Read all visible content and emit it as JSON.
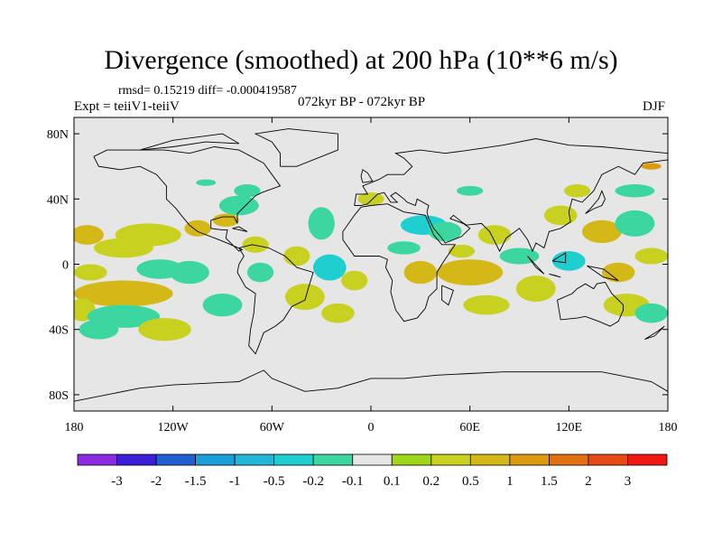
{
  "title": "Divergence (smoothed) at 200 hPa (10**6 m/s)",
  "stats": "rmsd= 0.15219 diff= -0.000419587",
  "period": "072kyr BP - 072kyr BP",
  "expt": "Expt = teiiV1-teiiV",
  "season": "DJF",
  "map": {
    "projection": "cylindrical-equidistant",
    "lon_range": [
      -180,
      180
    ],
    "lat_range": [
      -90,
      90
    ],
    "background_color": "#e6e6e6",
    "x_ticks": [
      {
        "value": -180,
        "label": "180"
      },
      {
        "value": -120,
        "label": "120W"
      },
      {
        "value": -60,
        "label": "60W"
      },
      {
        "value": 0,
        "label": "0"
      },
      {
        "value": 60,
        "label": "60E"
      },
      {
        "value": 120,
        "label": "120E"
      },
      {
        "value": 180,
        "label": "180"
      }
    ],
    "y_ticks": [
      {
        "value": 80,
        "label": "80N"
      },
      {
        "value": 40,
        "label": "40N"
      },
      {
        "value": 0,
        "label": "0"
      },
      {
        "value": -40,
        "label": "40S"
      },
      {
        "value": -80,
        "label": "80S"
      }
    ]
  },
  "colorbar": {
    "colors": [
      "#8a2be2",
      "#3a1fd6",
      "#1f5fd1",
      "#1c9ed8",
      "#22b7d6",
      "#1fcfd0",
      "#3cd6a0",
      "#e6e6e6",
      "#a0d61a",
      "#c8d020",
      "#d4b818",
      "#dc9a10",
      "#e07010",
      "#e64a14",
      "#f01810"
    ],
    "labels": [
      "-3",
      "-2",
      "-1.5",
      "-1",
      "-0.5",
      "-0.2",
      "-0.1",
      "0.1",
      "0.2",
      "0.5",
      "1",
      "1.5",
      "2",
      "3"
    ]
  },
  "anomalies": [
    {
      "lon": -172,
      "lat": 18,
      "rx": 10,
      "ry": 6,
      "v": 0.5
    },
    {
      "lon": -150,
      "lat": 10,
      "rx": 18,
      "ry": 6,
      "v": 0.2
    },
    {
      "lon": -135,
      "lat": 18,
      "rx": 20,
      "ry": 7,
      "v": 0.2
    },
    {
      "lon": -105,
      "lat": 22,
      "rx": 8,
      "ry": 5,
      "v": 0.5
    },
    {
      "lon": -170,
      "lat": -5,
      "rx": 10,
      "ry": 5,
      "v": 0.2
    },
    {
      "lon": -128,
      "lat": -3,
      "rx": 14,
      "ry": 6,
      "v": -0.2
    },
    {
      "lon": -110,
      "lat": -5,
      "rx": 12,
      "ry": 7,
      "v": -0.2
    },
    {
      "lon": -150,
      "lat": -18,
      "rx": 30,
      "ry": 8,
      "v": 0.5
    },
    {
      "lon": -175,
      "lat": -28,
      "rx": 8,
      "ry": 7,
      "v": 0.2
    },
    {
      "lon": -150,
      "lat": -32,
      "rx": 22,
      "ry": 7,
      "v": -0.2
    },
    {
      "lon": -90,
      "lat": -25,
      "rx": 12,
      "ry": 7,
      "v": -0.2
    },
    {
      "lon": -125,
      "lat": -40,
      "rx": 16,
      "ry": 7,
      "v": 0.2
    },
    {
      "lon": -165,
      "lat": -40,
      "rx": 12,
      "ry": 6,
      "v": -0.2
    },
    {
      "lon": -80,
      "lat": 36,
      "rx": 12,
      "ry": 6,
      "v": -0.2
    },
    {
      "lon": -88,
      "lat": 27,
      "rx": 8,
      "ry": 4,
      "v": 0.5
    },
    {
      "lon": -70,
      "lat": 12,
      "rx": 8,
      "ry": 5,
      "v": 0.2
    },
    {
      "lon": -67,
      "lat": -5,
      "rx": 8,
      "ry": 6,
      "v": -0.2
    },
    {
      "lon": -45,
      "lat": 5,
      "rx": 8,
      "ry": 6,
      "v": 0.2
    },
    {
      "lon": -25,
      "lat": -2,
      "rx": 10,
      "ry": 8,
      "v": -0.5
    },
    {
      "lon": -30,
      "lat": 25,
      "rx": 8,
      "ry": 10,
      "v": -0.2
    },
    {
      "lon": -40,
      "lat": -20,
      "rx": 12,
      "ry": 8,
      "v": 0.2
    },
    {
      "lon": -20,
      "lat": -30,
      "rx": 10,
      "ry": 6,
      "v": 0.2
    },
    {
      "lon": -10,
      "lat": -10,
      "rx": 8,
      "ry": 6,
      "v": 0.2
    },
    {
      "lon": 32,
      "lat": 24,
      "rx": 14,
      "ry": 6,
      "v": -0.5
    },
    {
      "lon": 45,
      "lat": 20,
      "rx": 10,
      "ry": 6,
      "v": -0.2
    },
    {
      "lon": 20,
      "lat": 10,
      "rx": 10,
      "ry": 4,
      "v": -0.2
    },
    {
      "lon": 55,
      "lat": 8,
      "rx": 8,
      "ry": 4,
      "v": 0.2
    },
    {
      "lon": 30,
      "lat": -5,
      "rx": 10,
      "ry": 7,
      "v": 0.5
    },
    {
      "lon": 60,
      "lat": -5,
      "rx": 20,
      "ry": 8,
      "v": 0.5
    },
    {
      "lon": 70,
      "lat": -25,
      "rx": 14,
      "ry": 6,
      "v": 0.2
    },
    {
      "lon": 100,
      "lat": -15,
      "rx": 12,
      "ry": 8,
      "v": 0.2
    },
    {
      "lon": 90,
      "lat": 5,
      "rx": 12,
      "ry": 5,
      "v": -0.2
    },
    {
      "lon": 75,
      "lat": 18,
      "rx": 10,
      "ry": 6,
      "v": 0.2
    },
    {
      "lon": 120,
      "lat": 2,
      "rx": 10,
      "ry": 6,
      "v": -0.5
    },
    {
      "lon": 115,
      "lat": 30,
      "rx": 10,
      "ry": 6,
      "v": 0.2
    },
    {
      "lon": 140,
      "lat": 20,
      "rx": 12,
      "ry": 7,
      "v": 0.5
    },
    {
      "lon": 160,
      "lat": 25,
      "rx": 12,
      "ry": 8,
      "v": -0.2
    },
    {
      "lon": 150,
      "lat": -5,
      "rx": 10,
      "ry": 6,
      "v": 0.5
    },
    {
      "lon": 155,
      "lat": -25,
      "rx": 14,
      "ry": 7,
      "v": 0.2
    },
    {
      "lon": 170,
      "lat": 5,
      "rx": 10,
      "ry": 5,
      "v": 0.2
    },
    {
      "lon": 170,
      "lat": -30,
      "rx": 10,
      "ry": 6,
      "v": -0.2
    },
    {
      "lon": 160,
      "lat": 45,
      "rx": 12,
      "ry": 4,
      "v": -0.2
    },
    {
      "lon": 170,
      "lat": 60,
      "rx": 6,
      "ry": 2,
      "v": 1
    },
    {
      "lon": 125,
      "lat": 45,
      "rx": 8,
      "ry": 4,
      "v": 0.2
    },
    {
      "lon": 0,
      "lat": 40,
      "rx": 8,
      "ry": 4,
      "v": 0.2
    },
    {
      "lon": 60,
      "lat": 45,
      "rx": 8,
      "ry": 3,
      "v": -0.2
    },
    {
      "lon": -75,
      "lat": 45,
      "rx": 8,
      "ry": 4,
      "v": -0.2
    },
    {
      "lon": -100,
      "lat": 50,
      "rx": 6,
      "ry": 2,
      "v": -0.2
    }
  ],
  "coastlines": [
    [
      [
        -168,
        66
      ],
      [
        -160,
        70
      ],
      [
        -140,
        70
      ],
      [
        -125,
        70
      ],
      [
        -110,
        68
      ],
      [
        -95,
        72
      ],
      [
        -80,
        70
      ],
      [
        -65,
        62
      ],
      [
        -60,
        55
      ],
      [
        -55,
        48
      ],
      [
        -66,
        44
      ],
      [
        -70,
        42
      ],
      [
        -76,
        36
      ],
      [
        -81,
        31
      ],
      [
        -81,
        25
      ],
      [
        -83,
        29
      ],
      [
        -90,
        29
      ],
      [
        -97,
        27
      ],
      [
        -97,
        22
      ],
      [
        -90,
        21
      ],
      [
        -87,
        21
      ],
      [
        -88,
        16
      ],
      [
        -83,
        11
      ],
      [
        -80,
        8
      ],
      [
        -78,
        9
      ],
      [
        -85,
        12
      ],
      [
        -92,
        15
      ],
      [
        -105,
        20
      ],
      [
        -110,
        24
      ],
      [
        -115,
        30
      ],
      [
        -118,
        34
      ],
      [
        -124,
        40
      ],
      [
        -124,
        48
      ],
      [
        -130,
        55
      ],
      [
        -140,
        60
      ],
      [
        -152,
        58
      ],
      [
        -165,
        60
      ],
      [
        -168,
        66
      ]
    ],
    [
      [
        -80,
        10
      ],
      [
        -72,
        12
      ],
      [
        -62,
        10
      ],
      [
        -52,
        5
      ],
      [
        -45,
        -2
      ],
      [
        -35,
        -5
      ],
      [
        -38,
        -15
      ],
      [
        -40,
        -22
      ],
      [
        -48,
        -26
      ],
      [
        -53,
        -34
      ],
      [
        -58,
        -38
      ],
      [
        -65,
        -42
      ],
      [
        -68,
        -50
      ],
      [
        -70,
        -55
      ],
      [
        -74,
        -50
      ],
      [
        -73,
        -40
      ],
      [
        -71,
        -30
      ],
      [
        -70,
        -18
      ],
      [
        -76,
        -14
      ],
      [
        -81,
        -5
      ],
      [
        -80,
        0
      ],
      [
        -77,
        5
      ],
      [
        -80,
        10
      ]
    ],
    [
      [
        -17,
        15
      ],
      [
        -10,
        5
      ],
      [
        5,
        5
      ],
      [
        10,
        3
      ],
      [
        9,
        -2
      ],
      [
        13,
        -10
      ],
      [
        12,
        -17
      ],
      [
        15,
        -28
      ],
      [
        20,
        -35
      ],
      [
        28,
        -33
      ],
      [
        33,
        -27
      ],
      [
        35,
        -20
      ],
      [
        40,
        -15
      ],
      [
        40,
        -5
      ],
      [
        43,
        0
      ],
      [
        51,
        12
      ],
      [
        43,
        12
      ],
      [
        38,
        18
      ],
      [
        33,
        30
      ],
      [
        20,
        32
      ],
      [
        10,
        37
      ],
      [
        0,
        36
      ],
      [
        -6,
        35
      ],
      [
        -10,
        30
      ],
      [
        -17,
        20
      ],
      [
        -17,
        15
      ]
    ],
    [
      [
        -10,
        36
      ],
      [
        -9,
        43
      ],
      [
        -2,
        43
      ],
      [
        -5,
        48
      ],
      [
        5,
        52
      ],
      [
        10,
        55
      ],
      [
        20,
        55
      ],
      [
        25,
        60
      ],
      [
        20,
        65
      ],
      [
        15,
        68
      ],
      [
        30,
        70
      ],
      [
        45,
        68
      ],
      [
        60,
        70
      ],
      [
        80,
        73
      ],
      [
        100,
        77
      ],
      [
        120,
        73
      ],
      [
        140,
        72
      ],
      [
        160,
        70
      ],
      [
        180,
        68
      ]
    ],
    [
      [
        180,
        64
      ],
      [
        165,
        62
      ],
      [
        160,
        55
      ],
      [
        150,
        60
      ],
      [
        140,
        55
      ],
      [
        135,
        45
      ],
      [
        128,
        38
      ],
      [
        122,
        40
      ],
      [
        120,
        32
      ],
      [
        121,
        26
      ],
      [
        115,
        22
      ],
      [
        108,
        20
      ],
      [
        105,
        10
      ],
      [
        100,
        13
      ],
      [
        98,
        8
      ],
      [
        95,
        15
      ],
      [
        90,
        22
      ],
      [
        82,
        16
      ],
      [
        78,
        8
      ],
      [
        72,
        20
      ],
      [
        67,
        25
      ],
      [
        58,
        24
      ],
      [
        55,
        26
      ],
      [
        50,
        30
      ],
      [
        48,
        28
      ],
      [
        56,
        25
      ],
      [
        60,
        22
      ],
      [
        55,
        17
      ],
      [
        45,
        13
      ],
      [
        43,
        16
      ],
      [
        38,
        22
      ],
      [
        35,
        28
      ],
      [
        34,
        32
      ],
      [
        35,
        36
      ],
      [
        28,
        40
      ],
      [
        27,
        36
      ],
      [
        22,
        38
      ],
      [
        20,
        40
      ],
      [
        15,
        44
      ],
      [
        12,
        42
      ],
      [
        16,
        38
      ],
      [
        12,
        38
      ],
      [
        8,
        44
      ],
      [
        4,
        43
      ],
      [
        -2,
        37
      ],
      [
        -6,
        36
      ],
      [
        -10,
        36
      ]
    ],
    [
      [
        113,
        -22
      ],
      [
        115,
        -34
      ],
      [
        125,
        -33
      ],
      [
        130,
        -32
      ],
      [
        138,
        -35
      ],
      [
        145,
        -38
      ],
      [
        150,
        -35
      ],
      [
        153,
        -28
      ],
      [
        153,
        -25
      ],
      [
        146,
        -18
      ],
      [
        142,
        -11
      ],
      [
        137,
        -12
      ],
      [
        135,
        -15
      ],
      [
        130,
        -12
      ],
      [
        125,
        -15
      ],
      [
        122,
        -18
      ],
      [
        113,
        -22
      ]
    ],
    [
      [
        -180,
        -84
      ],
      [
        -160,
        -80
      ],
      [
        -140,
        -76
      ],
      [
        -120,
        -74
      ],
      [
        -100,
        -73
      ],
      [
        -80,
        -72
      ],
      [
        -65,
        -65
      ],
      [
        -60,
        -70
      ],
      [
        -40,
        -78
      ],
      [
        -20,
        -76
      ],
      [
        0,
        -70
      ],
      [
        20,
        -70
      ],
      [
        40,
        -68
      ],
      [
        60,
        -67
      ],
      [
        80,
        -66
      ],
      [
        100,
        -66
      ],
      [
        120,
        -66
      ],
      [
        140,
        -66
      ],
      [
        160,
        -70
      ],
      [
        170,
        -72
      ],
      [
        180,
        -78
      ]
    ],
    [
      [
        -55,
        60
      ],
      [
        -45,
        60
      ],
      [
        -20,
        70
      ],
      [
        -20,
        80
      ],
      [
        -50,
        83
      ],
      [
        -70,
        80
      ],
      [
        -60,
        75
      ],
      [
        -55,
        68
      ],
      [
        -55,
        60
      ]
    ],
    [
      [
        -5,
        50
      ],
      [
        1,
        51
      ],
      [
        -2,
        56
      ],
      [
        -5,
        58
      ],
      [
        -6,
        54
      ],
      [
        -5,
        50
      ]
    ],
    [
      [
        130,
        31
      ],
      [
        135,
        34
      ],
      [
        140,
        36
      ],
      [
        142,
        40
      ],
      [
        140,
        45
      ],
      [
        138,
        40
      ],
      [
        133,
        34
      ],
      [
        130,
        31
      ]
    ],
    [
      [
        95,
        5
      ],
      [
        105,
        -6
      ],
      [
        100,
        -2
      ],
      [
        95,
        5
      ]
    ],
    [
      [
        108,
        -6
      ],
      [
        115,
        -8
      ],
      [
        112,
        -7
      ],
      [
        108,
        -6
      ]
    ],
    [
      [
        110,
        2
      ],
      [
        118,
        7
      ],
      [
        118,
        1
      ],
      [
        110,
        2
      ]
    ],
    [
      [
        131,
        -1
      ],
      [
        141,
        -3
      ],
      [
        150,
        -10
      ],
      [
        141,
        -8
      ],
      [
        131,
        -1
      ]
    ],
    [
      [
        43,
        -13
      ],
      [
        50,
        -16
      ],
      [
        47,
        -25
      ],
      [
        43,
        -22
      ],
      [
        43,
        -13
      ]
    ],
    [
      [
        166,
        -46
      ],
      [
        174,
        -41
      ],
      [
        178,
        -38
      ],
      [
        172,
        -44
      ],
      [
        166,
        -46
      ]
    ],
    [
      [
        -84,
        22
      ],
      [
        -75,
        20
      ],
      [
        -80,
        23
      ],
      [
        -84,
        22
      ]
    ],
    [
      [
        -140,
        70
      ],
      [
        -120,
        72
      ],
      [
        -100,
        75
      ],
      [
        -80,
        74
      ],
      [
        -90,
        80
      ],
      [
        -120,
        76
      ],
      [
        -140,
        70
      ]
    ]
  ]
}
